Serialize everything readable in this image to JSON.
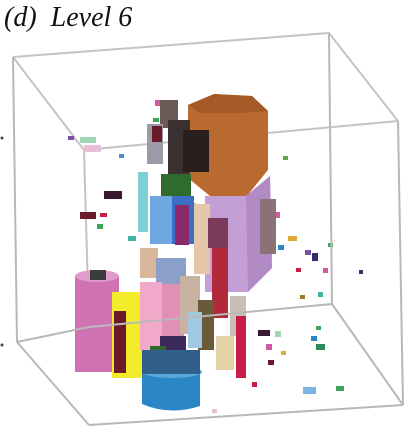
{
  "caption": {
    "label": "(d)",
    "title": "Level 6"
  },
  "colors": {
    "box_edge": "#b8b8b8",
    "orange": "#b96a2f",
    "lavender": "#c49fd6",
    "pink": "#cf72b2",
    "yellow": "#f3ec2a",
    "blue": "#2a86c4",
    "dark_green": "#2f6b2d",
    "maroon": "#6b1a2a",
    "crimson": "#c81d45",
    "light_pink": "#f0a9c8",
    "beige": "#d8b79a",
    "cyan": "#7cd0d6"
  }
}
